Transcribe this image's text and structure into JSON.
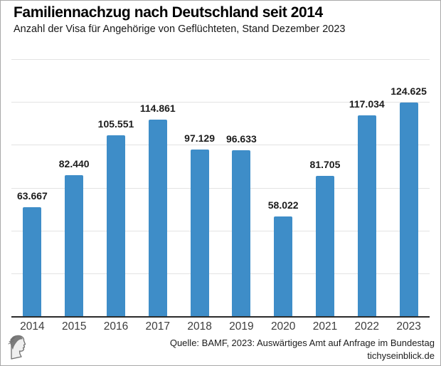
{
  "header": {
    "title": "Familiennachzug nach Deutschland seit 2014",
    "subtitle": "Anzahl der Visa für Angehörige von Geflüchteten, Stand Dezember 2023"
  },
  "chart_data": {
    "type": "bar",
    "title": "Familiennachzug nach Deutschland seit 2014",
    "subtitle": "Anzahl der Visa für Angehörige von Geflüchteten, Stand Dezember 2023",
    "categories": [
      "2014",
      "2015",
      "2016",
      "2017",
      "2018",
      "2019",
      "2020",
      "2021",
      "2022",
      "2023"
    ],
    "values": [
      63667,
      82440,
      105551,
      114861,
      97129,
      96633,
      58022,
      81705,
      117034,
      124625
    ],
    "value_labels": [
      "63.667",
      "82.440",
      "105.551",
      "114.861",
      "97.129",
      "96.633",
      "58.022",
      "81.705",
      "117.034",
      "124.625"
    ],
    "xlabel": "",
    "ylabel": "",
    "ylim": [
      0,
      150000
    ],
    "grid": true,
    "grid_interval": 25000,
    "legend": "none",
    "bar_color": "#3e8dc8"
  },
  "footer": {
    "source": "Quelle: BAMF, 2023: Auswärtiges Amt auf Anfrage im Bundestag",
    "website": "tichyseinblick.de",
    "logo": "tichys-einblick-head-logo"
  },
  "colors": {
    "bar": "#3e8dc8",
    "gridline": "#e3e3e3",
    "axis": "#2b2b2b",
    "frame_border": "#a9a9a9",
    "title_text": "#000000",
    "value_label_text": "#1c1c1c",
    "x_label_text": "#3d3d3d",
    "background": "#ffffff"
  }
}
